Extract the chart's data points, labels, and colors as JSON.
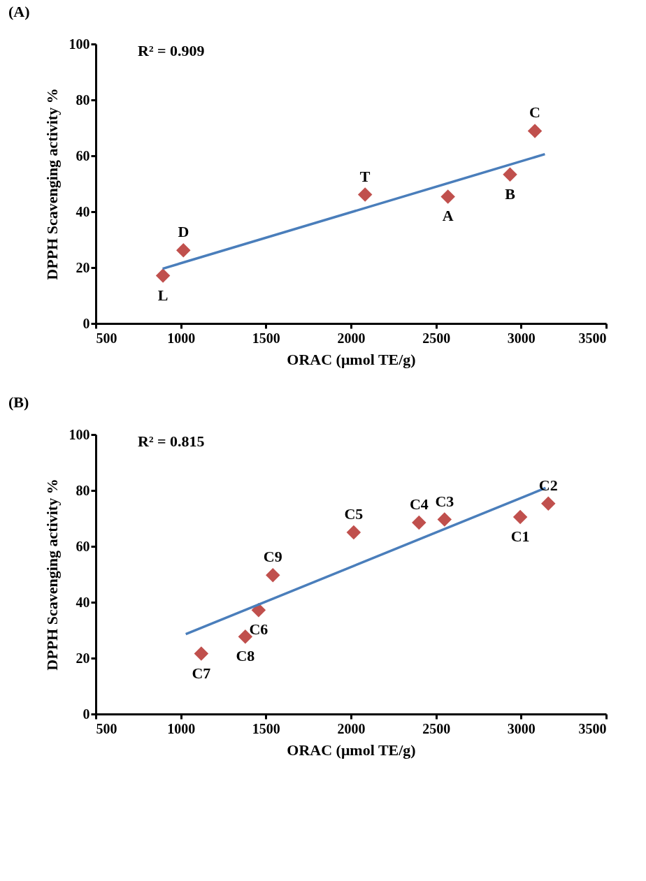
{
  "chart_data": [
    {
      "type": "scatter",
      "title": "(A)",
      "xlabel": "ORAC (μmol TE/g)",
      "ylabel": "DPPH Scavenging activity %",
      "xlim": [
        500,
        3500
      ],
      "xticks": [
        500,
        1000,
        1500,
        2000,
        2500,
        3000,
        3500
      ],
      "ylim": [
        0,
        100
      ],
      "yticks": [
        0,
        20,
        40,
        60,
        80,
        100
      ],
      "grid": false,
      "series": [
        {
          "marker": "diamond",
          "color": "#c0504d",
          "x": [
            895,
            1015,
            2083,
            2570,
            2935,
            3081
          ],
          "values": [
            17.1,
            26.2,
            46.1,
            45.4,
            53.3,
            68.9
          ]
        },
        {
          "type": "line",
          "color": "#4a7ebb",
          "x": [
            893,
            3140
          ],
          "values": [
            19.6,
            60.6
          ]
        }
      ],
      "annotations": [
        "R² = 0.909",
        {
          "text": "L",
          "x": 895,
          "y": 17.1
        },
        {
          "text": "D",
          "x": 1015,
          "y": 26.2
        },
        {
          "text": "T",
          "x": 2083,
          "y": 46.1
        },
        {
          "text": "A",
          "x": 2570,
          "y": 45.4
        },
        {
          "text": "B",
          "x": 2935,
          "y": 53.3
        },
        {
          "text": "C",
          "x": 3081,
          "y": 68.9
        }
      ]
    },
    {
      "type": "scatter",
      "title": "(B)",
      "xlabel": "ORAC (μmol TE/g)",
      "ylabel": "DPPH Scavenging activity %",
      "xlim": [
        500,
        3500
      ],
      "xticks": [
        500,
        1000,
        1500,
        2000,
        2500,
        3000,
        3500
      ],
      "ylim": [
        0,
        100
      ],
      "yticks": [
        0,
        20,
        40,
        60,
        80,
        100
      ],
      "grid": false,
      "series": [
        {
          "marker": "diamond",
          "color": "#c0504d",
          "x": [
            1120,
            1379,
            1457,
            1541,
            2016,
            2400,
            2550,
            2995,
            3160
          ],
          "values": [
            21.6,
            27.7,
            37.2,
            49.7,
            65.0,
            68.5,
            69.6,
            70.5,
            75.3
          ]
        },
        {
          "type": "line",
          "color": "#4a7ebb",
          "x": [
            1029,
            3144
          ],
          "values": [
            28.6,
            80.9
          ]
        }
      ],
      "annotations": [
        "R² = 0.815",
        {
          "text": "C7",
          "x": 1120,
          "y": 21.6
        },
        {
          "text": "C8",
          "x": 1379,
          "y": 27.7
        },
        {
          "text": "C6",
          "x": 1457,
          "y": 37.2
        },
        {
          "text": "C9",
          "x": 1541,
          "y": 49.7
        },
        {
          "text": "C5",
          "x": 2016,
          "y": 65.0
        },
        {
          "text": "C4",
          "x": 2400,
          "y": 68.5
        },
        {
          "text": "C3",
          "x": 2550,
          "y": 69.6
        },
        {
          "text": "C1",
          "x": 2995,
          "y": 70.5
        },
        {
          "text": "C2",
          "x": 3160,
          "y": 75.3
        }
      ]
    }
  ]
}
